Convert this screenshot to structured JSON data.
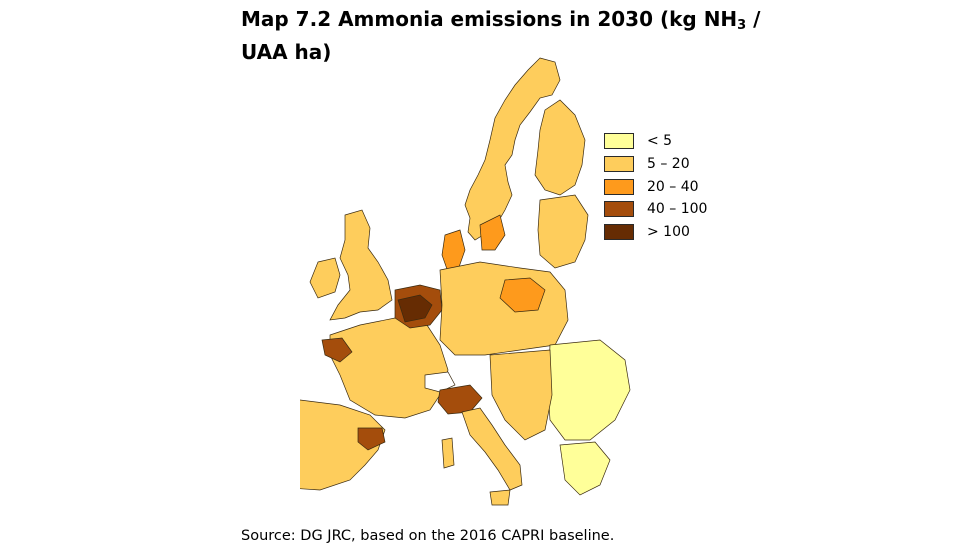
{
  "title": {
    "prefix": "Map 7.2 Ammonia emissions in 2030 (kg NH",
    "subscript": "3",
    "suffix": " /",
    "line2": "UAA ha)"
  },
  "legend": [
    {
      "label": "< 5",
      "color": "#ffff99"
    },
    {
      "label": "5 – 20",
      "color": "#fecd5c"
    },
    {
      "label": "20 – 40",
      "color": "#fe9a1c"
    },
    {
      "label": "40 – 100",
      "color": "#a44d0c"
    },
    {
      "label": "> 100",
      "color": "#662c03"
    }
  ],
  "source": "Source: DG JRC, based on the 2016 CAPRI baseline.",
  "map": {
    "description_regions": {
      "norway_sweden_finland": "#fecd5c",
      "baltics_poland": "#fecd5c",
      "uk_ireland": "#fecd5c",
      "france": "#fecd5c",
      "iberia": "#fecd5c",
      "germany_central": "#fecd5c",
      "italy": "#fecd5c",
      "balkans_east": "#ffff99",
      "high_zones": "#fe9a1c",
      "benelux": "#a44d0c",
      "netherlands_core": "#662c03"
    }
  }
}
